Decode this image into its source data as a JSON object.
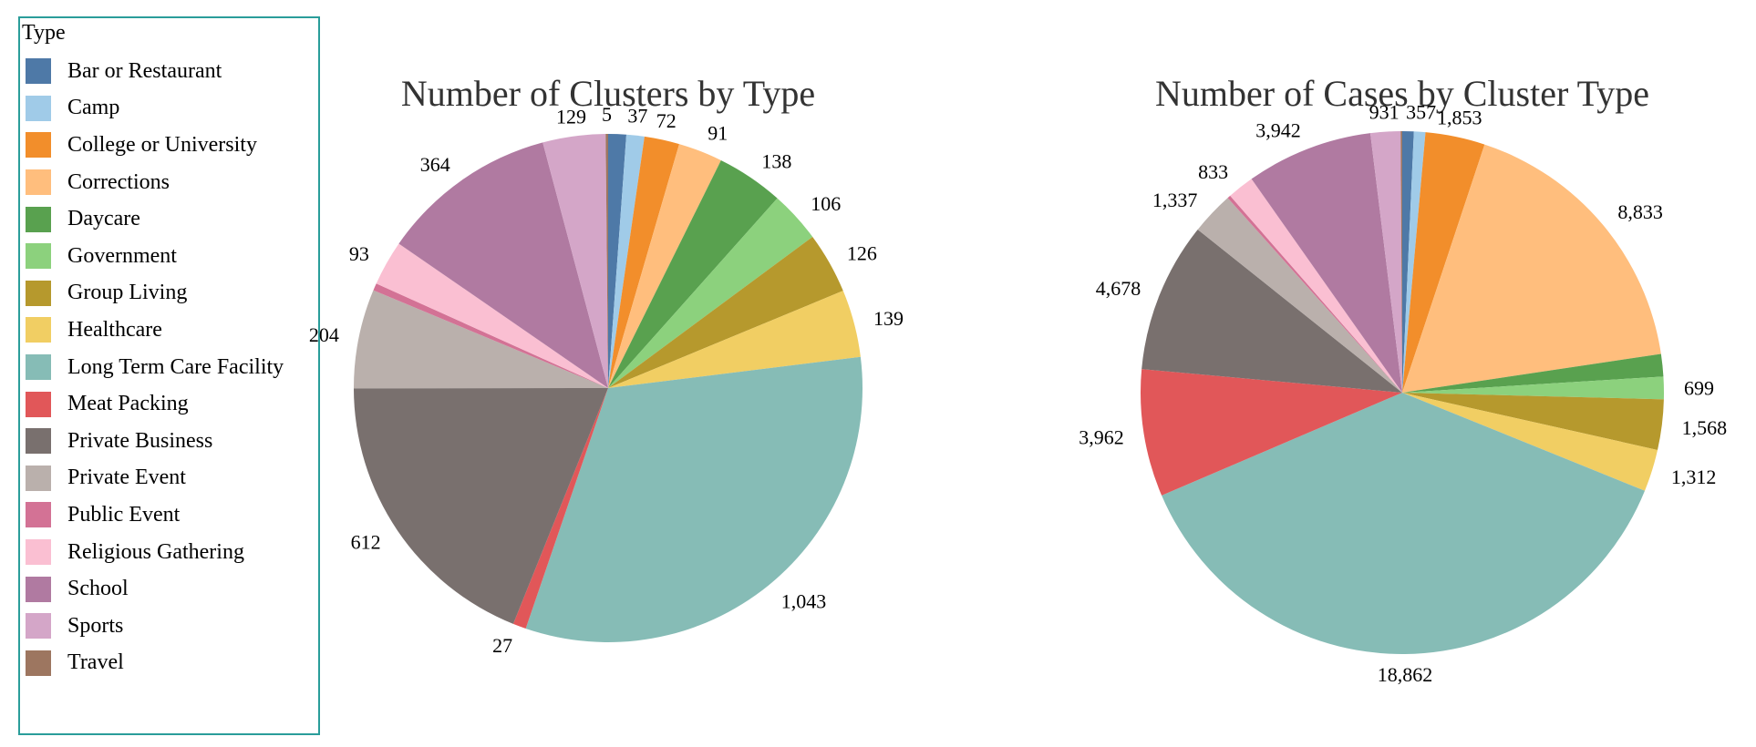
{
  "legend": {
    "title": "Type",
    "items": [
      {
        "label": "Bar or Restaurant",
        "color": "#4e79a7"
      },
      {
        "label": "Camp",
        "color": "#a0cbe8"
      },
      {
        "label": "College or University",
        "color": "#f28e2b"
      },
      {
        "label": "Corrections",
        "color": "#ffbe7d"
      },
      {
        "label": "Daycare",
        "color": "#59a14f"
      },
      {
        "label": "Government",
        "color": "#8cd17d"
      },
      {
        "label": "Group Living",
        "color": "#b6992d"
      },
      {
        "label": "Healthcare",
        "color": "#f1ce63"
      },
      {
        "label": "Long Term Care Facility",
        "color": "#86bcb6"
      },
      {
        "label": "Meat Packing",
        "color": "#e15759"
      },
      {
        "label": "Private Business",
        "color": "#79706e"
      },
      {
        "label": "Private Event",
        "color": "#bab0ac"
      },
      {
        "label": "Public Event",
        "color": "#d37295"
      },
      {
        "label": "Religious Gathering",
        "color": "#fabfd2"
      },
      {
        "label": "School",
        "color": "#b07aa1"
      },
      {
        "label": "Sports",
        "color": "#d4a6c8"
      },
      {
        "label": "Travel",
        "color": "#9d7660"
      }
    ]
  },
  "chart_data": [
    {
      "type": "pie",
      "title": "Number of Clusters by Type",
      "categories": [
        "Bar or Restaurant",
        "Camp",
        "College or University",
        "Corrections",
        "Daycare",
        "Government",
        "Group Living",
        "Healthcare",
        "Long Term Care Facility",
        "Meat Packing",
        "Private Business",
        "Private Event",
        "Public Event",
        "Religious Gathering",
        "School",
        "Sports",
        "Travel"
      ],
      "values": [
        37,
        37,
        72,
        91,
        138,
        106,
        126,
        139,
        1043,
        27,
        612,
        204,
        15,
        93,
        364,
        129,
        5
      ],
      "labels": [
        "",
        "37",
        "72",
        "91",
        "138",
        "106",
        "126",
        "139",
        "1,043",
        "27",
        "612",
        "204",
        "",
        "93",
        "364",
        "129",
        "5"
      ]
    },
    {
      "type": "pie",
      "title": "Number of Cases by Cluster Type",
      "categories": [
        "Bar or Restaurant",
        "Camp",
        "College or University",
        "Corrections",
        "Daycare",
        "Government",
        "Group Living",
        "Healthcare",
        "Long Term Care Facility",
        "Meat Packing",
        "Private Business",
        "Private Event",
        "Public Event",
        "Religious Gathering",
        "School",
        "Sports",
        "Travel"
      ],
      "values": [
        357,
        357,
        1853,
        8833,
        699,
        699,
        1568,
        1312,
        18862,
        3962,
        4678,
        1337,
        100,
        833,
        3942,
        931,
        50
      ],
      "labels": [
        "",
        "357",
        "1,853",
        "8,833",
        "",
        "699",
        "1,568",
        "1,312",
        "18,862",
        "3,962",
        "4,678",
        "1,337",
        "",
        "833",
        "3,942",
        "931",
        ""
      ]
    }
  ]
}
